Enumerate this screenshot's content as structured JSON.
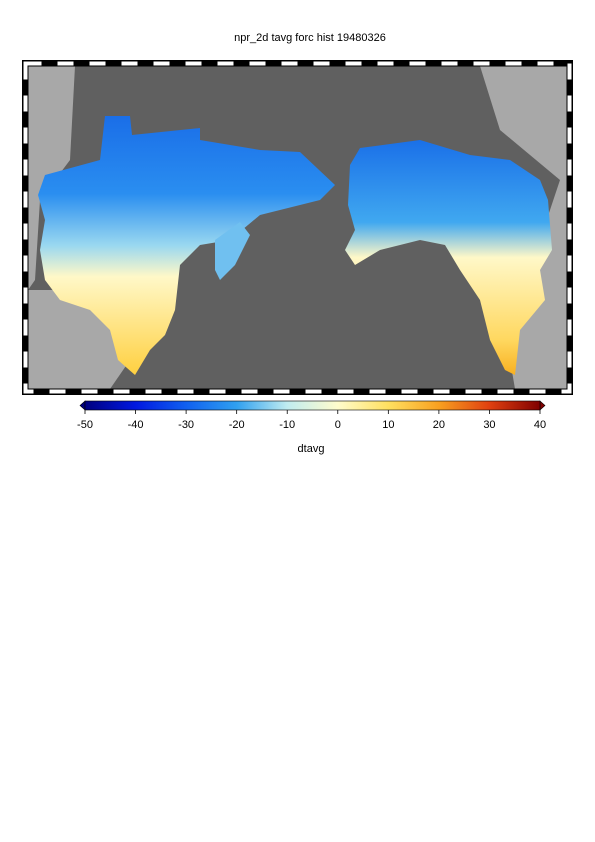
{
  "title": "npr_2d tavg forc hist 19480326",
  "colorbar": {
    "label": "dtavg",
    "lim": [
      -50,
      40
    ],
    "ticks": [
      -50,
      -40,
      -30,
      -20,
      -10,
      0,
      10,
      20,
      30,
      40
    ],
    "colors": [
      "#000080",
      "#0018e0",
      "#1060f0",
      "#30a0f0",
      "#c0ecf0",
      "#fffccc",
      "#ffe060",
      "#f8a020",
      "#e04010",
      "#800000"
    ]
  }
}
